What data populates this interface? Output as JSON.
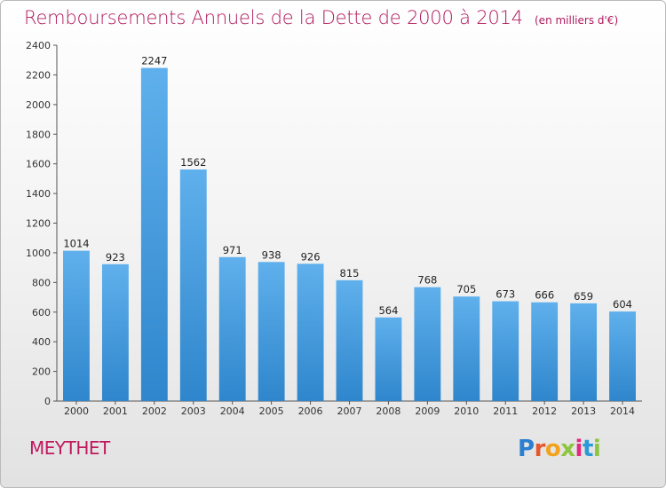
{
  "chart_data": {
    "type": "bar",
    "title": "Remboursements Annuels de la Dette de 2000 à 2014",
    "subtitle": "(en milliers d'€)",
    "categories": [
      "2000",
      "2001",
      "2002",
      "2003",
      "2004",
      "2005",
      "2006",
      "2007",
      "2008",
      "2009",
      "2010",
      "2011",
      "2012",
      "2013",
      "2014"
    ],
    "values": [
      1014,
      923,
      2247,
      1562,
      971,
      938,
      926,
      815,
      564,
      768,
      705,
      673,
      666,
      659,
      604
    ],
    "ylim": [
      0,
      2400
    ],
    "yticks": [
      0,
      200,
      400,
      600,
      800,
      1000,
      1200,
      1400,
      1600,
      1800,
      2000,
      2200,
      2400
    ],
    "grid": false,
    "bar_color": "#3d93d6",
    "bar_color_light": "#5fb0ec"
  },
  "footer": {
    "commune": "MEYTHET",
    "logo_letters": [
      {
        "ch": "P",
        "color": "#2a7fd0"
      },
      {
        "ch": "r",
        "color": "#e6572a"
      },
      {
        "ch": "o",
        "color": "#f2a21b"
      },
      {
        "ch": "x",
        "color": "#8cc63f"
      },
      {
        "ch": "i",
        "color": "#e5287e"
      },
      {
        "ch": "t",
        "color": "#2a9bd8"
      },
      {
        "ch": "i",
        "color": "#8cc63f"
      }
    ]
  },
  "colors": {
    "title": "#b0195d",
    "commune": "#c0185e"
  }
}
